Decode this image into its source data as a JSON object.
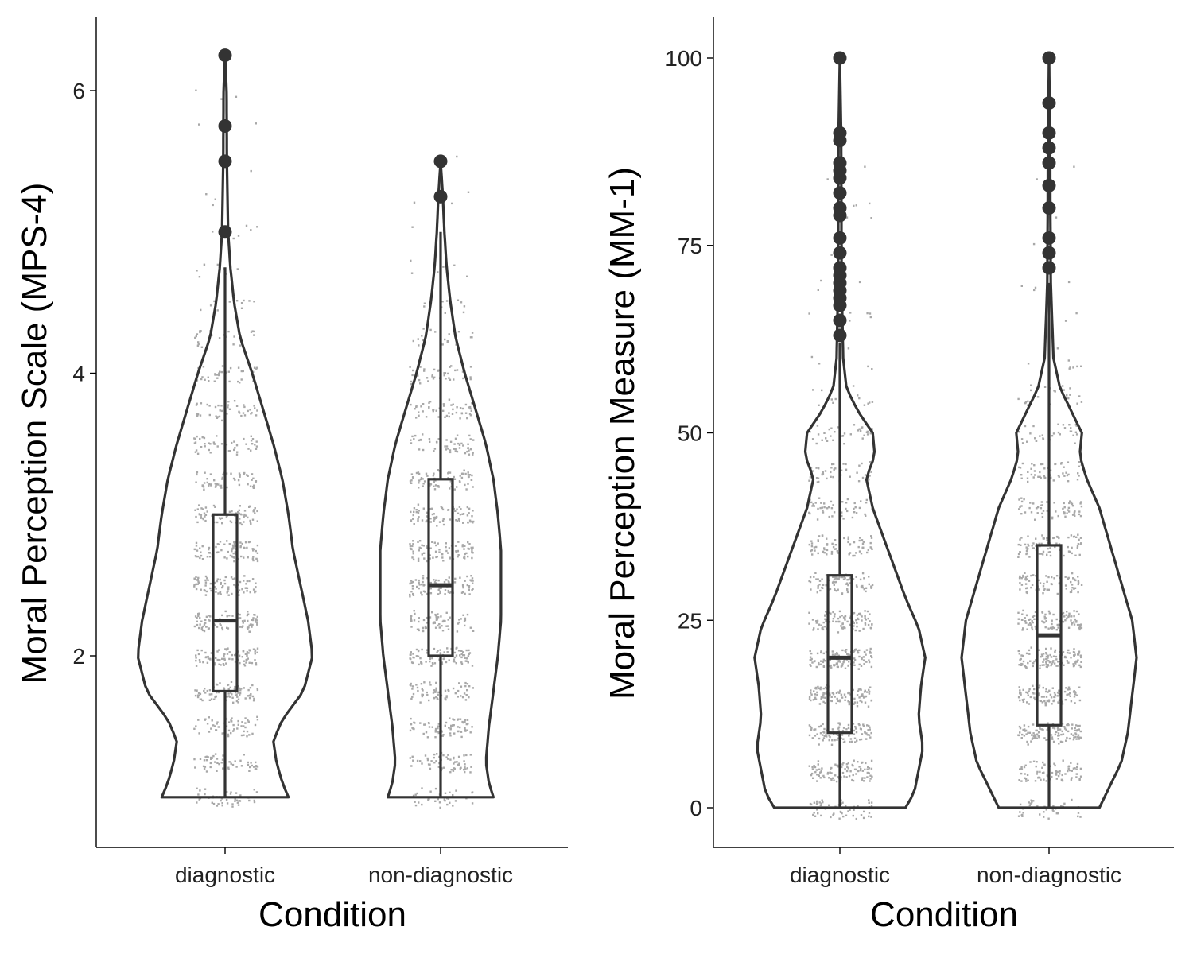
{
  "chart_data": [
    {
      "type": "violin",
      "xlabel": "Condition",
      "ylabel": "Moral Perception Scale (MPS-4)",
      "categories": [
        "diagnostic",
        "non-diagnostic"
      ],
      "ylim": [
        0.75,
        6.4
      ],
      "yticks": [
        2,
        4,
        6
      ],
      "grid": false,
      "legend": "none",
      "colors": {
        "outline": "#333333",
        "points": "#a8a8a8"
      },
      "groups": [
        {
          "name": "diagnostic",
          "box": {
            "q1": 1.75,
            "median": 2.25,
            "q3": 3.0,
            "whisker_low": 1.0,
            "whisker_high": 4.75
          },
          "outliers": [
            5.0,
            5.5,
            5.75,
            6.25
          ],
          "range": [
            1.0,
            6.25
          ],
          "density": [
            [
              1.0,
              0.42
            ],
            [
              1.1,
              0.38
            ],
            [
              1.25,
              0.34
            ],
            [
              1.4,
              0.32
            ],
            [
              1.55,
              0.38
            ],
            [
              1.75,
              0.52
            ],
            [
              2.0,
              0.58
            ],
            [
              2.25,
              0.55
            ],
            [
              2.5,
              0.5
            ],
            [
              2.75,
              0.45
            ],
            [
              3.0,
              0.42
            ],
            [
              3.25,
              0.38
            ],
            [
              3.5,
              0.32
            ],
            [
              3.75,
              0.25
            ],
            [
              4.0,
              0.18
            ],
            [
              4.25,
              0.1
            ],
            [
              4.5,
              0.06
            ],
            [
              4.75,
              0.035
            ],
            [
              5.0,
              0.02
            ],
            [
              5.5,
              0.012
            ],
            [
              6.0,
              0.01
            ],
            [
              6.25,
              0.0
            ]
          ]
        },
        {
          "name": "non-diagnostic",
          "box": {
            "q1": 2.0,
            "median": 2.5,
            "q3": 3.25,
            "whisker_low": 1.0,
            "whisker_high": 5.0
          },
          "outliers": [
            5.25,
            5.5
          ],
          "range": [
            1.0,
            5.5
          ],
          "density": [
            [
              1.0,
              0.35
            ],
            [
              1.1,
              0.32
            ],
            [
              1.25,
              0.3
            ],
            [
              1.5,
              0.32
            ],
            [
              1.75,
              0.35
            ],
            [
              2.0,
              0.38
            ],
            [
              2.25,
              0.4
            ],
            [
              2.5,
              0.4
            ],
            [
              2.75,
              0.4
            ],
            [
              3.0,
              0.38
            ],
            [
              3.25,
              0.35
            ],
            [
              3.5,
              0.3
            ],
            [
              3.75,
              0.23
            ],
            [
              4.0,
              0.16
            ],
            [
              4.25,
              0.1
            ],
            [
              4.5,
              0.065
            ],
            [
              4.75,
              0.04
            ],
            [
              5.0,
              0.025
            ],
            [
              5.25,
              0.015
            ],
            [
              5.5,
              0.0
            ]
          ]
        }
      ]
    },
    {
      "type": "violin",
      "xlabel": "Condition",
      "ylabel": "Moral Perception Measure (MM-1)",
      "categories": [
        "diagnostic",
        "non-diagnostic"
      ],
      "ylim": [
        -5,
        105
      ],
      "yticks": [
        0,
        25,
        50,
        75,
        100
      ],
      "grid": false,
      "legend": "none",
      "colors": {
        "outline": "#333333",
        "points": "#a8a8a8"
      },
      "groups": [
        {
          "name": "diagnostic",
          "box": {
            "q1": 10,
            "median": 20,
            "q3": 31,
            "whisker_low": 0,
            "whisker_high": 62
          },
          "outliers": [
            63,
            65,
            67,
            68,
            69,
            70,
            71,
            72,
            74,
            76,
            79,
            80,
            82,
            84,
            85,
            86,
            89,
            90,
            100
          ],
          "range": [
            0,
            100
          ],
          "density": [
            [
              0,
              0.3
            ],
            [
              2,
              0.34
            ],
            [
              5,
              0.36
            ],
            [
              8,
              0.38
            ],
            [
              12,
              0.36
            ],
            [
              16,
              0.37
            ],
            [
              20,
              0.39
            ],
            [
              24,
              0.36
            ],
            [
              28,
              0.3
            ],
            [
              32,
              0.25
            ],
            [
              36,
              0.2
            ],
            [
              40,
              0.15
            ],
            [
              44,
              0.12
            ],
            [
              47,
              0.16
            ],
            [
              50,
              0.15
            ],
            [
              53,
              0.08
            ],
            [
              56,
              0.03
            ],
            [
              60,
              0.015
            ],
            [
              70,
              0.008
            ],
            [
              80,
              0.007
            ],
            [
              90,
              0.006
            ],
            [
              100,
              0.0
            ]
          ]
        },
        {
          "name": "non-diagnostic",
          "box": {
            "q1": 11,
            "median": 23,
            "q3": 35,
            "whisker_low": 0,
            "whisker_high": 70
          },
          "outliers": [
            72,
            74,
            76,
            80,
            83,
            86,
            88,
            90,
            94,
            100
          ],
          "range": [
            0,
            100
          ],
          "density": [
            [
              0,
              0.23
            ],
            [
              3,
              0.28
            ],
            [
              6,
              0.33
            ],
            [
              10,
              0.36
            ],
            [
              15,
              0.38
            ],
            [
              20,
              0.4
            ],
            [
              25,
              0.38
            ],
            [
              30,
              0.33
            ],
            [
              35,
              0.28
            ],
            [
              40,
              0.23
            ],
            [
              44,
              0.17
            ],
            [
              47,
              0.14
            ],
            [
              50,
              0.15
            ],
            [
              53,
              0.1
            ],
            [
              56,
              0.05
            ],
            [
              60,
              0.02
            ],
            [
              70,
              0.008
            ],
            [
              80,
              0.006
            ],
            [
              90,
              0.005
            ],
            [
              100,
              0.0
            ]
          ]
        }
      ]
    }
  ]
}
